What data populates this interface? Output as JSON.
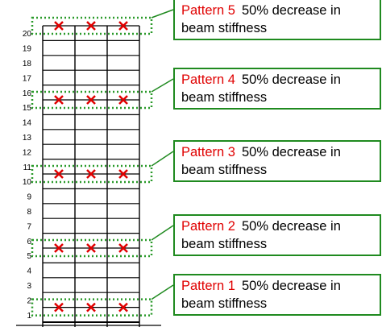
{
  "floor_labels": [
    "1",
    "2",
    "3",
    "4",
    "5",
    "6",
    "7",
    "8",
    "9",
    "10",
    "11",
    "12",
    "13",
    "14",
    "15",
    "16",
    "17",
    "18",
    "19",
    "20"
  ],
  "patterns": [
    {
      "name": "Pattern 1",
      "description": "50% decrease in beam stiffness"
    },
    {
      "name": "Pattern 2",
      "description": "50% decrease in beam stiffness"
    },
    {
      "name": "Pattern 3",
      "description": "50% decrease in beam stiffness"
    },
    {
      "name": "Pattern 4",
      "description": "50% decrease in beam stiffness"
    },
    {
      "name": "Pattern 5",
      "description": "50% decrease in beam stiffness"
    }
  ]
}
